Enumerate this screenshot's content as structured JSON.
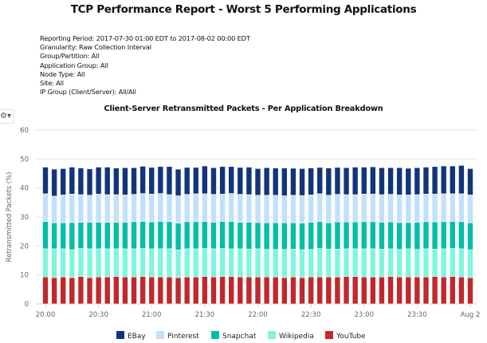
{
  "report_title": "TCP Performance Report - Worst 5 Performing Applications",
  "meta_lines": [
    "Reporting Period: 2017-07-30 01:00 EDT to 2017-08-02 00:00 EDT",
    "Granularity: Raw Collection Interval",
    "Group/Partition: All",
    "Application Group: All",
    "Node Type: All",
    "Site: All",
    "IP Group (Client/Server): All/All"
  ],
  "options_icon": "gear-dropdown-icon",
  "chart_data": {
    "type": "bar",
    "stacked": true,
    "title": "Client-Server Retransmitted Packets - Per Application Breakdown",
    "xlabel": "",
    "ylabel": "Retransmitted Packets (%)",
    "ylim": [
      0,
      60
    ],
    "yticks": [
      "0",
      "10",
      "20",
      "30",
      "40",
      "50",
      "60"
    ],
    "xticks": [
      "20:00",
      "20:30",
      "21:00",
      "21:30",
      "22:00",
      "22:30",
      "23:00",
      "23:30",
      "Aug 2"
    ],
    "x_interval": "5 min, 20:00 to 00:00",
    "grid": true,
    "legend": "bottom",
    "series": [
      {
        "name": "YouTube",
        "color": "#c0282d",
        "values": [
          9.3,
          9.1,
          9.3,
          9.1,
          9.5,
          9.1,
          9.3,
          9.3,
          9.5,
          9.3,
          9.3,
          9.5,
          9.3,
          9.3,
          9.3,
          9.1,
          9.3,
          9.3,
          9.5,
          9.3,
          9.5,
          9.5,
          9.3,
          9.3,
          9.3,
          9.3,
          9.3,
          9.1,
          9.3,
          9.1,
          9.3,
          9.3,
          9.3,
          9.3,
          9.5,
          9.5,
          9.3,
          9.3,
          9.3,
          9.5,
          9.3,
          9.3,
          9.3,
          9.3,
          9.5,
          9.3,
          9.5,
          9.3,
          9.1
        ]
      },
      {
        "name": "Wikipedia",
        "color": "#7ff5e0",
        "values": [
          9.7,
          9.9,
          9.7,
          9.6,
          9.6,
          9.9,
          9.7,
          9.7,
          9.5,
          9.7,
          9.7,
          9.6,
          9.7,
          9.7,
          9.7,
          9.5,
          9.7,
          9.7,
          9.6,
          9.7,
          9.6,
          9.5,
          9.7,
          9.6,
          9.7,
          9.5,
          9.5,
          9.7,
          9.6,
          9.6,
          9.5,
          9.8,
          9.6,
          9.6,
          9.5,
          9.5,
          9.7,
          9.7,
          9.6,
          9.5,
          9.5,
          9.7,
          9.5,
          9.7,
          9.4,
          9.7,
          9.6,
          9.7,
          9.6
        ]
      },
      {
        "name": "Snapchat",
        "color": "#00bfa5",
        "values": [
          9.5,
          9.0,
          9.0,
          9.4,
          9.1,
          9.2,
          9.2,
          9.2,
          9.2,
          9.2,
          9.4,
          9.4,
          9.3,
          9.5,
          9.4,
          9.3,
          9.4,
          9.4,
          9.4,
          9.2,
          9.4,
          9.5,
          9.2,
          9.3,
          9.1,
          9.2,
          9.2,
          9.2,
          9.1,
          9.2,
          9.4,
          9.3,
          9.1,
          9.4,
          9.3,
          9.3,
          9.4,
          9.4,
          9.3,
          9.3,
          9.3,
          9.1,
          9.4,
          9.4,
          9.4,
          9.4,
          9.4,
          9.4,
          9.3
        ]
      },
      {
        "name": "Pinterest",
        "color": "#c2e0fa",
        "values": [
          9.5,
          9.2,
          9.6,
          9.8,
          9.5,
          9.3,
          9.7,
          9.5,
          9.5,
          9.4,
          9.4,
          9.6,
          9.6,
          9.6,
          9.3,
          9.4,
          9.4,
          9.6,
          9.5,
          9.6,
          9.4,
          9.6,
          9.6,
          9.5,
          9.4,
          9.5,
          9.5,
          9.3,
          9.5,
          9.5,
          9.4,
          9.6,
          9.5,
          9.5,
          9.4,
          9.4,
          9.5,
          9.5,
          9.5,
          9.5,
          9.5,
          9.5,
          9.5,
          9.5,
          9.6,
          9.6,
          9.5,
          9.6,
          9.6
        ]
      },
      {
        "name": "EBay",
        "color": "#12347a",
        "values": [
          9.2,
          9.3,
          9.1,
          9.3,
          9.2,
          9.1,
          9.3,
          9.5,
          9.2,
          9.4,
          9.2,
          9.4,
          9.2,
          9.3,
          9.7,
          9.2,
          9.3,
          9.1,
          9.6,
          9.2,
          9.5,
          9.3,
          9.3,
          9.5,
          9.2,
          9.5,
          9.4,
          9.6,
          9.3,
          9.3,
          9.3,
          9.1,
          9.4,
          9.3,
          9.3,
          9.5,
          9.3,
          9.4,
          9.3,
          9.2,
          9.4,
          9.2,
          9.3,
          9.3,
          9.5,
          9.6,
          9.6,
          9.8,
          9.1
        ]
      }
    ],
    "legend_order": [
      "EBay",
      "Pinterest",
      "Snapchat",
      "Wikipedia",
      "YouTube"
    ]
  }
}
